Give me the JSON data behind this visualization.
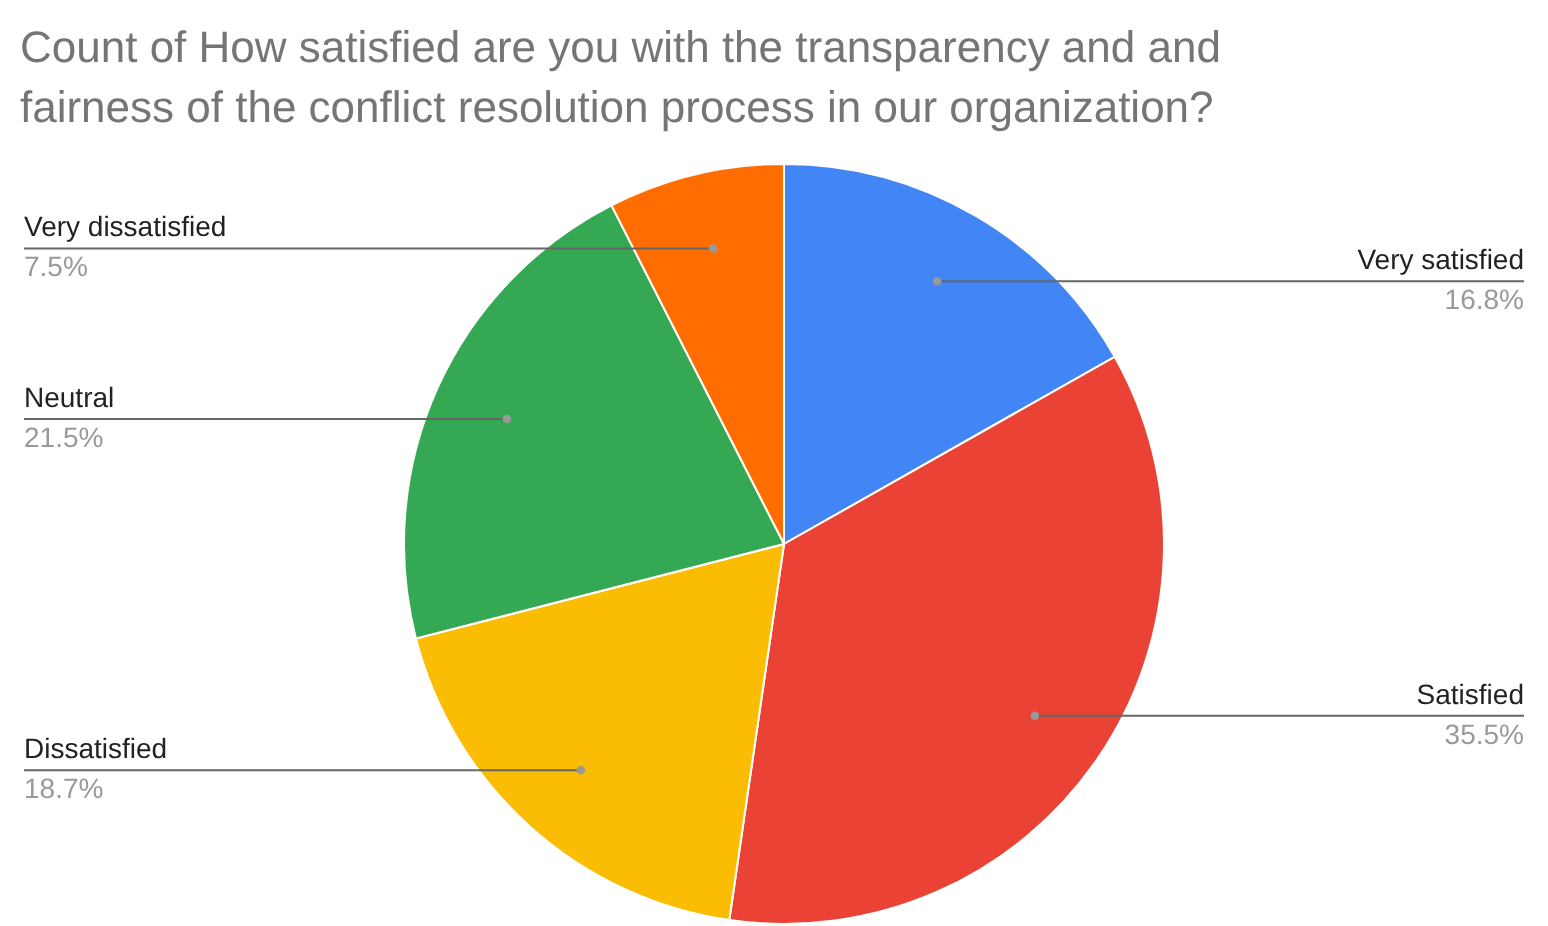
{
  "chart_data": {
    "type": "pie",
    "title": [
      "Count of How satisfied are you with the transparency and and",
      "fairness of the conflict resolution process in our organization?"
    ],
    "categories": [
      "Very satisfied",
      "Satisfied",
      "Dissatisfied",
      "Neutral",
      "Very dissatisfied"
    ],
    "values": [
      16.8,
      35.5,
      18.7,
      21.5,
      7.5
    ],
    "value_labels": [
      "16.8%",
      "35.5%",
      "18.7%",
      "21.5%",
      "7.5%"
    ],
    "colors": [
      "#4285f4",
      "#ea4335",
      "#fbbc04",
      "#34a853",
      "#ff6d01"
    ]
  }
}
